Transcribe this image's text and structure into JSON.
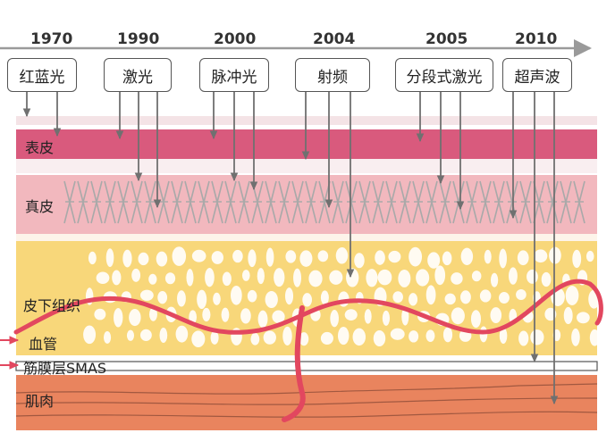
{
  "timeline": {
    "years": [
      "1970",
      "1990",
      "2000",
      "2004",
      "2005",
      "2010"
    ]
  },
  "technologies": [
    "红蓝光",
    "激光",
    "脉冲光",
    "射频",
    "分段式激光",
    "超声波"
  ],
  "layers": {
    "epidermis": "表皮",
    "dermis": "真皮",
    "subcutaneous": "皮下组织",
    "vessel": "血管",
    "smas": "筋膜层SMAS",
    "muscle": "肌肉"
  },
  "colors": {
    "timeline_arrow": "#9a9a9a",
    "epidermis": "#d95a7d",
    "dermis": "#f2b8be",
    "subcutaneous": "#f8d77a",
    "fat_cells": "#ffffff",
    "vessel": "#e2475f",
    "muscle": "#e9845e",
    "penetration_arrow": "#707070"
  }
}
